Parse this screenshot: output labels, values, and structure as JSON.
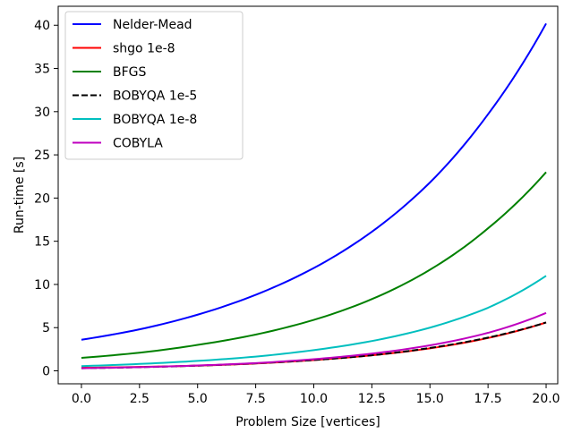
{
  "chart_data": {
    "type": "line",
    "title": "",
    "xlabel": "Problem Size [vertices]",
    "ylabel": "Run-time [s]",
    "xlim": [
      -1,
      20.5
    ],
    "ylim": [
      -1.5,
      42.2
    ],
    "xticks": [
      0.0,
      2.5,
      5.0,
      7.5,
      10.0,
      12.5,
      15.0,
      17.5,
      20.0
    ],
    "xtick_labels": [
      "0.0",
      "2.5",
      "5.0",
      "7.5",
      "10.0",
      "12.5",
      "15.0",
      "17.5",
      "20.0"
    ],
    "yticks": [
      0,
      5,
      10,
      15,
      20,
      25,
      30,
      35,
      40
    ],
    "ytick_labels": [
      "0",
      "5",
      "10",
      "15",
      "20",
      "25",
      "30",
      "35",
      "40"
    ],
    "grid": false,
    "legend_position": "top-left",
    "x": [
      0,
      2.5,
      5,
      7.5,
      10,
      12.5,
      15,
      17.5,
      20
    ],
    "series": [
      {
        "name": "Nelder-Mead",
        "color": "#0000ff",
        "dash": "solid",
        "values": [
          3.6,
          4.8,
          6.5,
          8.8,
          11.9,
          16.1,
          21.8,
          29.7,
          40.2
        ]
      },
      {
        "name": "shgo 1e-8",
        "color": "#ff0000",
        "dash": "solid",
        "values": [
          0.35,
          0.45,
          0.6,
          0.85,
          1.25,
          1.8,
          2.6,
          3.8,
          5.6
        ]
      },
      {
        "name": "BFGS",
        "color": "#008000",
        "dash": "solid",
        "values": [
          1.5,
          2.1,
          3.0,
          4.2,
          5.9,
          8.3,
          11.7,
          16.5,
          23.0
        ]
      },
      {
        "name": "BOBYQA 1e-5",
        "color": "#000000",
        "dash": "dashed",
        "values": [
          0.3,
          0.42,
          0.6,
          0.87,
          1.25,
          1.8,
          2.65,
          3.85,
          5.6
        ]
      },
      {
        "name": "BOBYQA 1e-8",
        "color": "#00bfbf",
        "dash": "solid",
        "values": [
          0.55,
          0.8,
          1.15,
          1.65,
          2.4,
          3.45,
          5.0,
          7.3,
          11.0
        ]
      },
      {
        "name": "COBYLA",
        "color": "#bf00bf",
        "dash": "solid",
        "values": [
          0.3,
          0.43,
          0.62,
          0.9,
          1.35,
          2.0,
          2.95,
          4.4,
          6.7
        ]
      }
    ]
  }
}
